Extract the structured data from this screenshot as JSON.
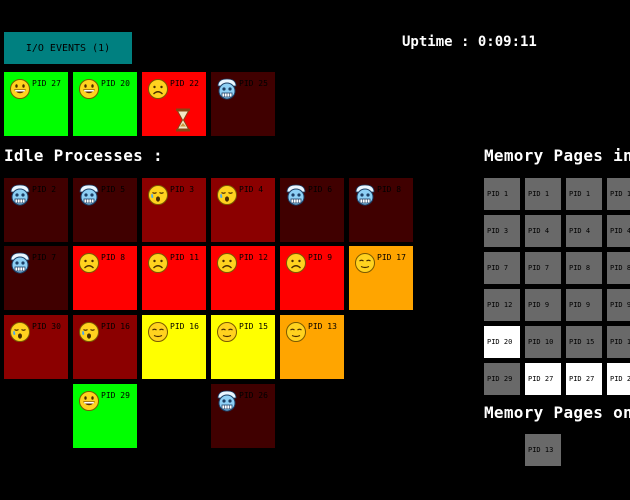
{
  "io_events": {
    "label": "I/O EVENTS (1)"
  },
  "uptime": {
    "text": "Uptime : 0:09:11"
  },
  "headings": {
    "idle": "Idle Processes :",
    "mem_ram": "Memory Pages in",
    "mem_disk": "Memory Pages on"
  },
  "colors": {
    "green": "#00ff00",
    "red": "#ff0000",
    "orange": "#ffa500",
    "yellow": "#ffff00",
    "darkred": "#8b0000",
    "maroon": "#400000",
    "gray": "#696969",
    "white": "#ffffff",
    "teal": "#008080"
  },
  "cpu_processes": [
    {
      "pid": "PID 27",
      "state": "happy",
      "color": "green"
    },
    {
      "pid": "PID 20",
      "state": "happy",
      "color": "green"
    },
    {
      "pid": "PID 22",
      "state": "sad",
      "color": "red",
      "io_wait": true
    },
    {
      "pid": "PID 25",
      "state": "frozen",
      "color": "maroon"
    }
  ],
  "idle_processes": [
    {
      "pid": "PID 2",
      "state": "frozen",
      "color": "maroon"
    },
    {
      "pid": "PID 5",
      "state": "frozen",
      "color": "maroon"
    },
    {
      "pid": "PID 3",
      "state": "crying",
      "color": "darkred"
    },
    {
      "pid": "PID 4",
      "state": "crying",
      "color": "darkred"
    },
    {
      "pid": "PID 6",
      "state": "frozen",
      "color": "maroon"
    },
    {
      "pid": "PID 8",
      "state": "frozen",
      "color": "maroon"
    },
    {
      "pid": "PID 7",
      "state": "frozen",
      "color": "maroon"
    },
    {
      "pid": "PID 8",
      "state": "sad",
      "color": "red"
    },
    {
      "pid": "PID 11",
      "state": "sad",
      "color": "red"
    },
    {
      "pid": "PID 12",
      "state": "sad",
      "color": "red"
    },
    {
      "pid": "PID 9",
      "state": "sad",
      "color": "red"
    },
    {
      "pid": "PID 17",
      "state": "neutral",
      "color": "orange"
    },
    {
      "pid": "PID 30",
      "state": "crying",
      "color": "darkred"
    },
    {
      "pid": "PID 16",
      "state": "crying",
      "color": "darkred"
    },
    {
      "pid": "PID 16",
      "state": "neutral",
      "color": "yellow"
    },
    {
      "pid": "PID 15",
      "state": "neutral",
      "color": "yellow"
    },
    {
      "pid": "PID 13",
      "state": "neutral",
      "color": "orange"
    },
    {
      "pid": "PID 29",
      "state": "happy",
      "color": "green"
    },
    {
      "pid": "PID 26",
      "state": "frozen",
      "color": "maroon"
    }
  ],
  "memory_ram": [
    {
      "label": "PID 1",
      "active": false
    },
    {
      "label": "PID 1",
      "active": false
    },
    {
      "label": "PID 1",
      "active": false
    },
    {
      "label": "PID 1",
      "active": false
    },
    {
      "label": "PID 3",
      "active": false
    },
    {
      "label": "PID 4",
      "active": false
    },
    {
      "label": "PID 4",
      "active": false
    },
    {
      "label": "PID 4",
      "active": false
    },
    {
      "label": "PID 7",
      "active": false
    },
    {
      "label": "PID 7",
      "active": false
    },
    {
      "label": "PID 8",
      "active": false
    },
    {
      "label": "PID 8",
      "active": false
    },
    {
      "label": "PID 12",
      "active": false
    },
    {
      "label": "PID 9",
      "active": false
    },
    {
      "label": "PID 9",
      "active": false
    },
    {
      "label": "PID 9",
      "active": false
    },
    {
      "label": "PID 20",
      "active": true
    },
    {
      "label": "PID 10",
      "active": false
    },
    {
      "label": "PID 15",
      "active": false
    },
    {
      "label": "PID 15",
      "active": false
    },
    {
      "label": "PID 29",
      "active": false
    },
    {
      "label": "PID 27",
      "active": true
    },
    {
      "label": "PID 27",
      "active": true
    },
    {
      "label": "PID 27",
      "active": true
    }
  ],
  "memory_disk": [
    {
      "label": "PID 13",
      "active": false
    }
  ]
}
